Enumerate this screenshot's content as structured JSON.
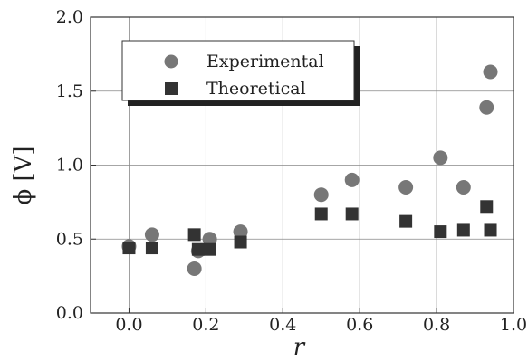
{
  "chart_data": {
    "type": "scatter",
    "xlabel": "r",
    "ylabel": "ϕ [V]",
    "xlim": [
      -0.1,
      1.0
    ],
    "ylim": [
      0.0,
      2.0
    ],
    "xticks": [
      "0.0",
      "0.2",
      "0.4",
      "0.6",
      "0.8",
      "1.0"
    ],
    "yticks": [
      "0.0",
      "0.5",
      "1.0",
      "1.5",
      "2.0"
    ],
    "grid": true,
    "legend_position": "top-left",
    "series": [
      {
        "name": "Experimental",
        "marker": "circle",
        "color": "#777777",
        "points": [
          {
            "x": 0.0,
            "y": 0.45
          },
          {
            "x": 0.06,
            "y": 0.53
          },
          {
            "x": 0.17,
            "y": 0.3
          },
          {
            "x": 0.18,
            "y": 0.42
          },
          {
            "x": 0.21,
            "y": 0.5
          },
          {
            "x": 0.29,
            "y": 0.55
          },
          {
            "x": 0.5,
            "y": 0.8
          },
          {
            "x": 0.58,
            "y": 0.9
          },
          {
            "x": 0.72,
            "y": 0.85
          },
          {
            "x": 0.81,
            "y": 1.05
          },
          {
            "x": 0.87,
            "y": 0.85
          },
          {
            "x": 0.93,
            "y": 1.39
          },
          {
            "x": 0.94,
            "y": 1.63
          }
        ]
      },
      {
        "name": "Theoretical",
        "marker": "square",
        "color": "#333333",
        "points": [
          {
            "x": 0.0,
            "y": 0.44
          },
          {
            "x": 0.06,
            "y": 0.44
          },
          {
            "x": 0.17,
            "y": 0.53
          },
          {
            "x": 0.18,
            "y": 0.43
          },
          {
            "x": 0.21,
            "y": 0.43
          },
          {
            "x": 0.29,
            "y": 0.48
          },
          {
            "x": 0.5,
            "y": 0.67
          },
          {
            "x": 0.58,
            "y": 0.67
          },
          {
            "x": 0.72,
            "y": 0.62
          },
          {
            "x": 0.81,
            "y": 0.55
          },
          {
            "x": 0.87,
            "y": 0.56
          },
          {
            "x": 0.93,
            "y": 0.72
          },
          {
            "x": 0.94,
            "y": 0.56
          }
        ]
      }
    ]
  }
}
